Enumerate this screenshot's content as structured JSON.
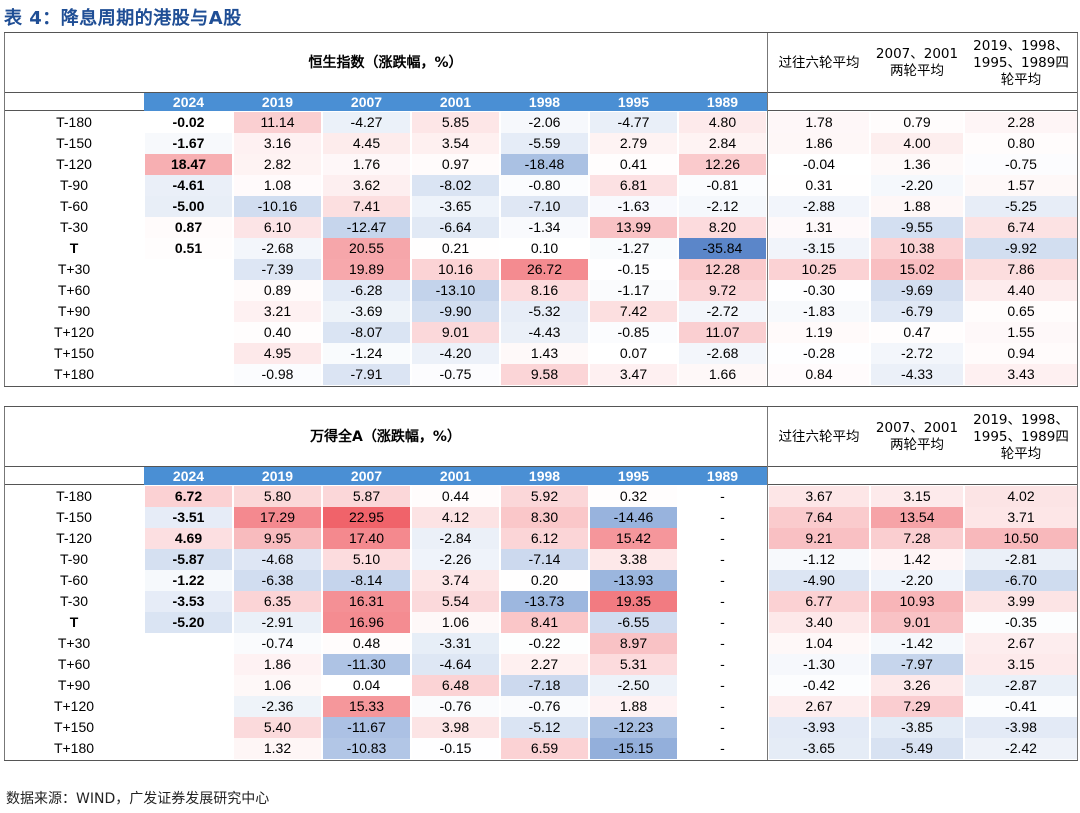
{
  "title": "表 4：降息周期的港股与A股",
  "source": "数据来源：WIND，广发证券发展研究中心",
  "tables": [
    {
      "main_title": "恒生指数（涨跌幅，%）",
      "avg_headers": [
        "过往六轮平均",
        "2007、2001两轮平均",
        "2019、1998、1995、1989四轮平均"
      ],
      "avg_header_lines": [
        [
          "过往六轮平均"
        ],
        [
          "2007、2001",
          "两轮平均"
        ],
        [
          "2019、1998、",
          "1995、1989四",
          "轮平均"
        ]
      ],
      "years": [
        "2024",
        "2019",
        "2007",
        "2001",
        "1998",
        "1995",
        "1989"
      ],
      "rows": [
        {
          "label": "T-180",
          "values": [
            "-0.02",
            "11.14",
            "-4.27",
            "5.85",
            "-2.06",
            "-4.77",
            "4.80"
          ],
          "avgs": [
            "1.78",
            "0.79",
            "2.28"
          ]
        },
        {
          "label": "T-150",
          "values": [
            "-1.67",
            "3.16",
            "4.45",
            "3.54",
            "-5.59",
            "2.79",
            "2.84"
          ],
          "avgs": [
            "1.86",
            "4.00",
            "0.80"
          ]
        },
        {
          "label": "T-120",
          "values": [
            "18.47",
            "2.82",
            "1.76",
            "0.97",
            "-18.48",
            "0.41",
            "12.26"
          ],
          "avgs": [
            "-0.04",
            "1.36",
            "-0.75"
          ]
        },
        {
          "label": "T-90",
          "values": [
            "-4.61",
            "1.08",
            "3.62",
            "-8.02",
            "-0.80",
            "6.81",
            "-0.81"
          ],
          "avgs": [
            "0.31",
            "-2.20",
            "1.57"
          ]
        },
        {
          "label": "T-60",
          "values": [
            "-5.00",
            "-10.16",
            "7.41",
            "-3.65",
            "-7.10",
            "-1.63",
            "-2.12"
          ],
          "avgs": [
            "-2.88",
            "1.88",
            "-5.25"
          ]
        },
        {
          "label": "T-30",
          "values": [
            "0.87",
            "6.10",
            "-12.47",
            "-6.64",
            "-1.34",
            "13.99",
            "8.20"
          ],
          "avgs": [
            "1.31",
            "-9.55",
            "6.74"
          ]
        },
        {
          "label": "T",
          "values": [
            "0.51",
            "-2.68",
            "20.55",
            "0.21",
            "0.10",
            "-1.27",
            "-35.84"
          ],
          "avgs": [
            "-3.15",
            "10.38",
            "-9.92"
          ]
        },
        {
          "label": "T+30",
          "values": [
            "",
            "-7.39",
            "19.89",
            "10.16",
            "26.72",
            "-0.15",
            "12.28"
          ],
          "avgs": [
            "10.25",
            "15.02",
            "7.86"
          ]
        },
        {
          "label": "T+60",
          "values": [
            "",
            "0.89",
            "-6.28",
            "-13.10",
            "8.16",
            "-1.17",
            "9.72"
          ],
          "avgs": [
            "-0.30",
            "-9.69",
            "4.40"
          ]
        },
        {
          "label": "T+90",
          "values": [
            "",
            "3.21",
            "-3.69",
            "-9.90",
            "-5.32",
            "7.42",
            "-2.72"
          ],
          "avgs": [
            "-1.83",
            "-6.79",
            "0.65"
          ]
        },
        {
          "label": "T+120",
          "values": [
            "",
            "0.40",
            "-8.07",
            "9.01",
            "-4.43",
            "-0.85",
            "11.07"
          ],
          "avgs": [
            "1.19",
            "0.47",
            "1.55"
          ]
        },
        {
          "label": "T+150",
          "values": [
            "",
            "4.95",
            "-1.24",
            "-4.20",
            "1.43",
            "0.07",
            "-2.68"
          ],
          "avgs": [
            "-0.28",
            "-2.72",
            "0.94"
          ]
        },
        {
          "label": "T+180",
          "values": [
            "",
            "-0.98",
            "-7.91",
            "-0.75",
            "9.58",
            "3.47",
            "1.66"
          ],
          "avgs": [
            "0.84",
            "-4.33",
            "3.43"
          ]
        }
      ]
    },
    {
      "main_title": "万得全A（涨跌幅，%）",
      "avg_headers": [
        "过往六轮平均",
        "2007、2001两轮平均",
        "2019、1998、1995、1989四轮平均"
      ],
      "avg_header_lines": [
        [
          "过往六轮平均"
        ],
        [
          "2007、2001",
          "两轮平均"
        ],
        [
          "2019、1998、",
          "1995、1989四",
          "轮平均"
        ]
      ],
      "years": [
        "2024",
        "2019",
        "2007",
        "2001",
        "1998",
        "1995",
        "1989"
      ],
      "rows": [
        {
          "label": "T-180",
          "values": [
            "6.72",
            "5.80",
            "5.87",
            "0.44",
            "5.92",
            "0.32",
            "-"
          ],
          "avgs": [
            "3.67",
            "3.15",
            "4.02"
          ]
        },
        {
          "label": "T-150",
          "values": [
            "-3.51",
            "17.29",
            "22.95",
            "4.12",
            "8.30",
            "-14.46",
            "-"
          ],
          "avgs": [
            "7.64",
            "13.54",
            "3.71"
          ]
        },
        {
          "label": "T-120",
          "values": [
            "4.69",
            "9.95",
            "17.40",
            "-2.84",
            "6.12",
            "15.42",
            "-"
          ],
          "avgs": [
            "9.21",
            "7.28",
            "10.50"
          ]
        },
        {
          "label": "T-90",
          "values": [
            "-5.87",
            "-4.68",
            "5.10",
            "-2.26",
            "-7.14",
            "3.38",
            "-"
          ],
          "avgs": [
            "-1.12",
            "1.42",
            "-2.81"
          ]
        },
        {
          "label": "T-60",
          "values": [
            "-1.22",
            "-6.38",
            "-8.14",
            "3.74",
            "0.20",
            "-13.93",
            "-"
          ],
          "avgs": [
            "-4.90",
            "-2.20",
            "-6.70"
          ]
        },
        {
          "label": "T-30",
          "values": [
            "-3.53",
            "6.35",
            "16.31",
            "5.54",
            "-13.73",
            "19.35",
            "-"
          ],
          "avgs": [
            "6.77",
            "10.93",
            "3.99"
          ]
        },
        {
          "label": "T",
          "values": [
            "-5.20",
            "-2.91",
            "16.96",
            "1.06",
            "8.41",
            "-6.55",
            "-"
          ],
          "avgs": [
            "3.40",
            "9.01",
            "-0.35"
          ]
        },
        {
          "label": "T+30",
          "values": [
            "",
            "-0.74",
            "0.48",
            "-3.31",
            "-0.22",
            "8.97",
            "-"
          ],
          "avgs": [
            "1.04",
            "-1.42",
            "2.67"
          ]
        },
        {
          "label": "T+60",
          "values": [
            "",
            "1.86",
            "-11.30",
            "-4.64",
            "2.27",
            "5.31",
            "-"
          ],
          "avgs": [
            "-1.30",
            "-7.97",
            "3.15"
          ]
        },
        {
          "label": "T+90",
          "values": [
            "",
            "1.06",
            "0.04",
            "6.48",
            "-7.18",
            "-2.50",
            "-"
          ],
          "avgs": [
            "-0.42",
            "3.26",
            "-2.87"
          ]
        },
        {
          "label": "T+120",
          "values": [
            "",
            "-2.36",
            "15.33",
            "-0.76",
            "-0.76",
            "1.88",
            "-"
          ],
          "avgs": [
            "2.67",
            "7.29",
            "-0.41"
          ]
        },
        {
          "label": "T+150",
          "values": [
            "",
            "5.40",
            "-11.67",
            "3.98",
            "-5.12",
            "-12.23",
            "-"
          ],
          "avgs": [
            "-3.93",
            "-3.85",
            "-3.98"
          ]
        },
        {
          "label": "T+180",
          "values": [
            "",
            "1.32",
            "-10.83",
            "-0.15",
            "6.59",
            "-15.15",
            "-"
          ],
          "avgs": [
            "-3.65",
            "-5.49",
            "-2.42"
          ]
        }
      ]
    }
  ],
  "colors": {
    "title": "#1f4e95",
    "year_header_bg": "#4a8fd4",
    "positive_max": "#f0636a",
    "negative_max": "#5b86c9",
    "neutral": "#ffffff"
  }
}
